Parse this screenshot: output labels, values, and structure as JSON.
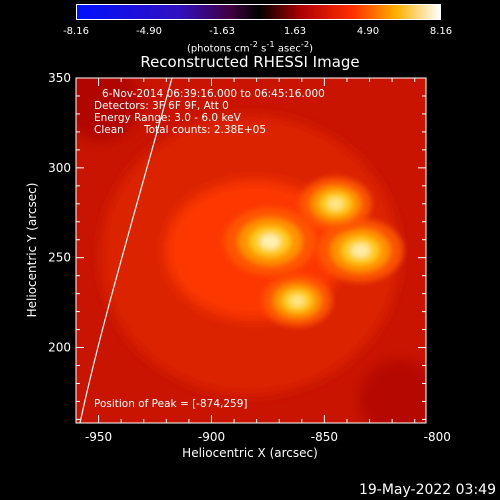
{
  "colorbar": {
    "ticks": [
      "-8.16",
      "-4.90",
      "-1.63",
      "1.63",
      "4.90",
      "8.16"
    ],
    "units_prefix": "(photons cm",
    "units_sup1": "-2",
    "units_mid1": " s",
    "units_sup2": "-1",
    "units_mid2": " asec",
    "units_sup3": "-2",
    "units_suffix": ")"
  },
  "chart_data": {
    "type": "heatmap",
    "title": "Reconstructed RHESSI Image",
    "xlabel": "Heliocentric X (arcsec)",
    "ylabel": "Heliocentric Y (arcsec)",
    "xlim": [
      -960,
      -805
    ],
    "ylim": [
      158,
      350
    ],
    "xticks": [
      "-950",
      "-900",
      "-850",
      "-800"
    ],
    "xtick_values": [
      -950,
      -900,
      -850,
      -800
    ],
    "yticks": [
      "200",
      "250",
      "300",
      "350"
    ],
    "ytick_values": [
      200,
      250,
      300,
      350
    ],
    "color_range": [
      -8.16,
      8.16
    ],
    "sources": [
      {
        "x": -874,
        "y": 259,
        "relative_intensity": 1.0
      },
      {
        "x": -834,
        "y": 254,
        "relative_intensity": 0.92
      },
      {
        "x": -845,
        "y": 280,
        "relative_intensity": 0.75
      },
      {
        "x": -862,
        "y": 226,
        "relative_intensity": 0.72
      }
    ],
    "annotations": {
      "time_range": "6-Nov-2014 06:39:16.000 to 06:45:16.000",
      "detectors": "Detectors: 3F 6F 9F, Att 0",
      "energy": "Energy Range: 3.0 - 6.0 keV",
      "method": "Clean",
      "counts": "Total counts: 2.38E+05",
      "peak": "Position of Peak = [-874,259]"
    }
  },
  "footer": {
    "date": "19-May-2022 03:49"
  }
}
